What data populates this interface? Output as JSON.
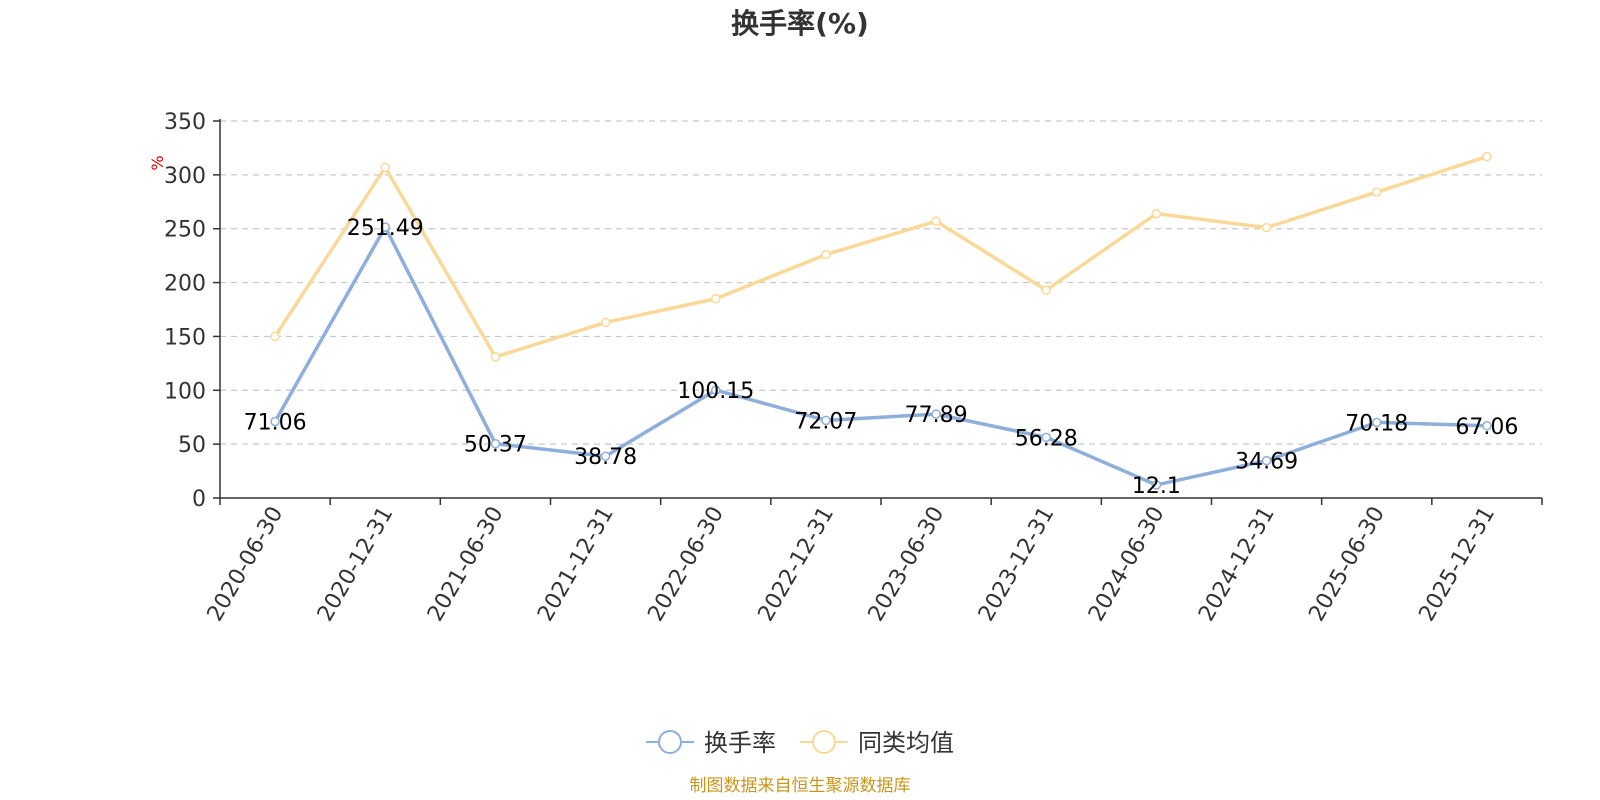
{
  "chart_data": {
    "type": "line",
    "title": "换手率(%)",
    "y_unit": "%",
    "ylim": [
      0,
      350
    ],
    "yticks": [
      0,
      50,
      100,
      150,
      200,
      250,
      300,
      350
    ],
    "grid": true,
    "legend_position": "bottom",
    "categories": [
      "2020-06-30",
      "2020-12-31",
      "2021-06-30",
      "2021-12-31",
      "2022-06-30",
      "2022-12-31",
      "2023-06-30",
      "2023-12-31",
      "2024-06-30",
      "2024-12-31",
      "2025-06-30",
      "2025-12-31"
    ],
    "series": [
      {
        "name": "换手率",
        "color": "#8eaedb",
        "values": [
          71.06,
          251.49,
          50.37,
          38.78,
          100.15,
          72.07,
          77.89,
          56.28,
          12.1,
          34.69,
          70.18,
          67.06
        ],
        "labels": [
          "71.06",
          "251.49",
          "50.37",
          "38.78",
          "100.15",
          "72.07",
          "77.89",
          "56.28",
          "12.1",
          "34.69",
          "70.18",
          "67.06"
        ]
      },
      {
        "name": "同类均值",
        "color": "#fad998",
        "values": [
          150,
          307,
          131,
          163,
          185,
          226,
          257,
          193,
          264,
          251,
          284,
          317
        ]
      }
    ]
  },
  "footer": {
    "source": "制图数据来自恒生聚源数据库"
  }
}
